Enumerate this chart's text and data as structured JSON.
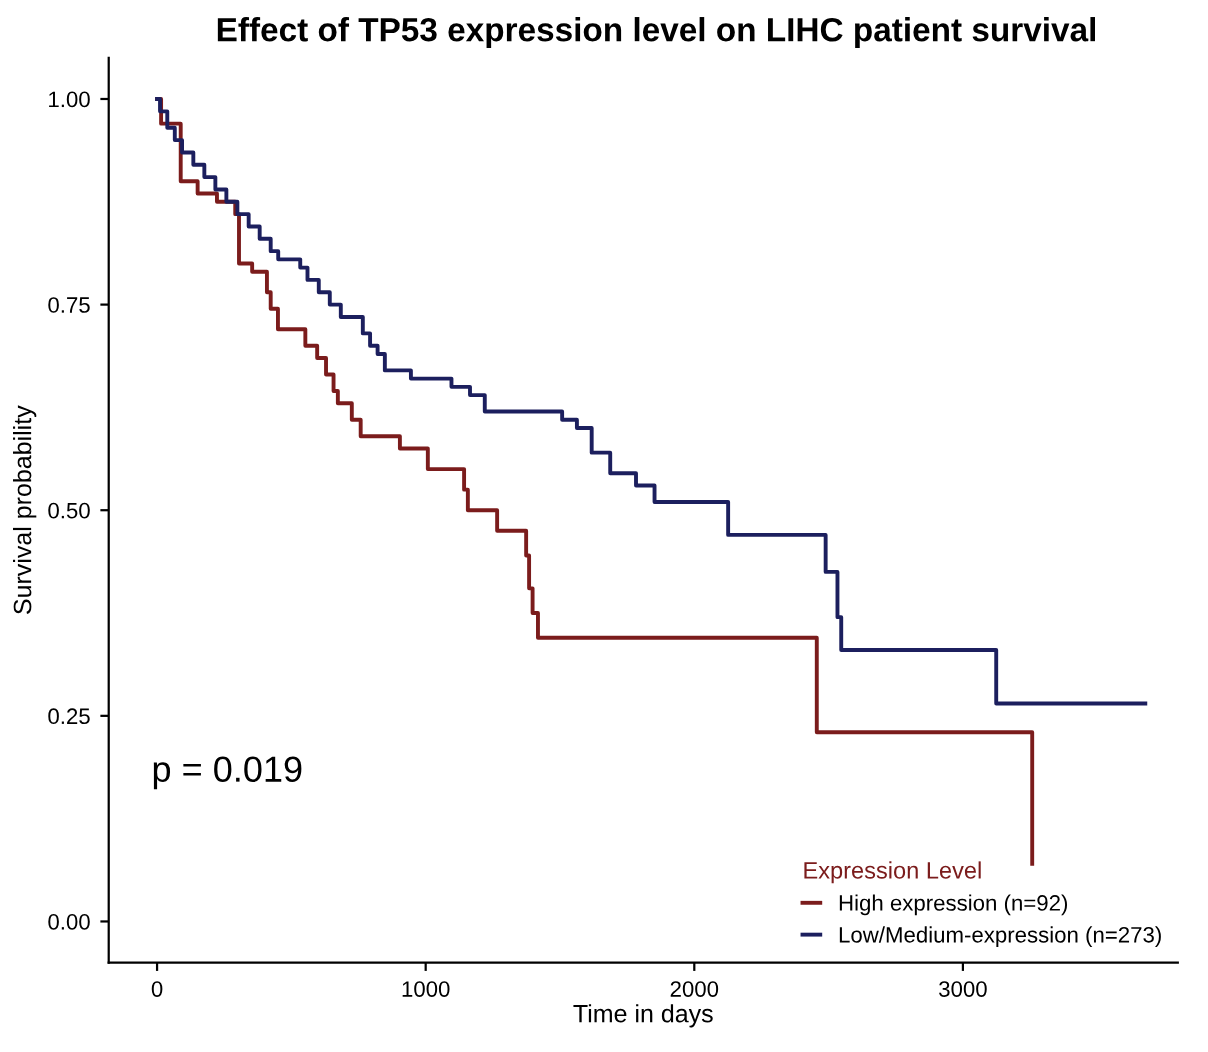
{
  "chart_data": {
    "type": "step",
    "title": "Effect of TP53 expression level on LIHC patient survival",
    "xlabel": "Time in days",
    "ylabel": "Survival probability",
    "legend_title": "Expression Level",
    "annotations": [
      "p = 0.019"
    ],
    "series": [
      {
        "name": "High expression (n=92)",
        "color": "#7b1c1c",
        "x": [
          0,
          15,
          88,
          151,
          223,
          291,
          305,
          354,
          409,
          423,
          450,
          552,
          596,
          629,
          657,
          673,
          725,
          758,
          904,
          1008,
          1143,
          1157,
          1266,
          1374,
          1385,
          1398,
          1418,
          2456,
          3258
        ],
        "values": [
          1.0,
          0.97,
          0.9,
          0.885,
          0.875,
          0.86,
          0.8,
          0.79,
          0.765,
          0.745,
          0.72,
          0.7,
          0.685,
          0.665,
          0.645,
          0.63,
          0.61,
          0.59,
          0.575,
          0.55,
          0.525,
          0.5,
          0.475,
          0.445,
          0.405,
          0.375,
          0.345,
          0.23,
          0.07
        ]
      },
      {
        "name": "Low/Medium-expression (n=273)",
        "color": "#1c1f5e",
        "x": [
          0,
          11,
          38,
          66,
          93,
          135,
          176,
          217,
          258,
          299,
          341,
          382,
          423,
          451,
          533,
          560,
          602,
          643,
          684,
          766,
          793,
          821,
          848,
          945,
          1096,
          1165,
          1220,
          1508,
          1563,
          1618,
          1687,
          1783,
          1852,
          2126,
          2489,
          2533,
          2547,
          3124,
          3679
        ],
        "values": [
          1.0,
          0.985,
          0.965,
          0.95,
          0.935,
          0.92,
          0.905,
          0.89,
          0.875,
          0.86,
          0.845,
          0.83,
          0.815,
          0.805,
          0.795,
          0.78,
          0.765,
          0.75,
          0.735,
          0.715,
          0.7,
          0.69,
          0.67,
          0.66,
          0.65,
          0.64,
          0.62,
          0.61,
          0.6,
          0.57,
          0.545,
          0.53,
          0.51,
          0.47,
          0.425,
          0.37,
          0.33,
          0.265,
          0.265
        ]
      }
    ],
    "xlim": [
      -180,
      3800
    ],
    "ylim": [
      -0.05,
      1.05
    ],
    "xticks": [
      0,
      1000,
      2000,
      3000
    ],
    "yticks": [
      {
        "value": 0,
        "label": "0.00"
      },
      {
        "value": 0.25,
        "label": "0.25"
      },
      {
        "value": 0.5,
        "label": "0.50"
      },
      {
        "value": 0.75,
        "label": "0.75"
      },
      {
        "value": 1,
        "label": "1.00"
      }
    ],
    "grid": false,
    "legend": "bottom right",
    "line_style": "solid"
  }
}
